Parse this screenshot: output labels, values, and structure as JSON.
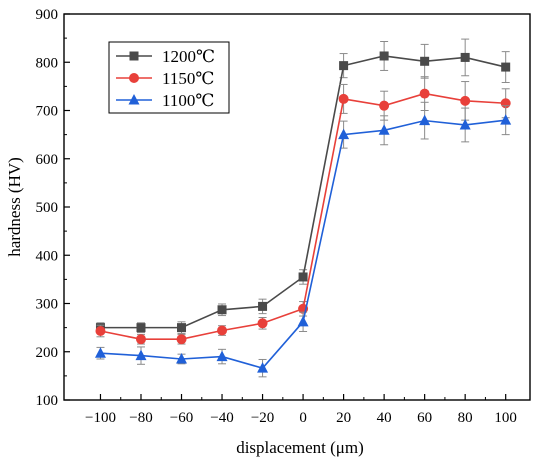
{
  "chart_data": {
    "type": "line",
    "xlabel": "displacement (μm)",
    "ylabel": "hardness (HV)",
    "x": [
      -100,
      -80,
      -60,
      -40,
      -20,
      0,
      20,
      40,
      60,
      80,
      100
    ],
    "xticks": [
      "−100",
      "−80",
      "−60",
      "−40",
      "−20",
      "0",
      "20",
      "40",
      "60",
      "80",
      "100"
    ],
    "xlim": [
      -118,
      112
    ],
    "yticks": [
      "100",
      "200",
      "300",
      "400",
      "500",
      "600",
      "700",
      "800",
      "900"
    ],
    "ylim": [
      100,
      900
    ],
    "grid": false,
    "legend_position": "top-left",
    "series": [
      {
        "name": "1200℃",
        "color": "#4a4a4a",
        "marker": "square",
        "values": [
          250,
          250,
          250,
          287,
          294,
          355,
          793,
          813,
          802,
          810,
          790
        ],
        "errors": [
          10,
          10,
          12,
          12,
          15,
          15,
          25,
          30,
          35,
          38,
          32
        ]
      },
      {
        "name": "1150℃",
        "color": "#e8403a",
        "marker": "circle",
        "values": [
          243,
          226,
          226,
          244,
          259,
          289,
          724,
          710,
          735,
          720,
          715
        ],
        "errors": [
          12,
          10,
          10,
          10,
          12,
          15,
          30,
          30,
          35,
          40,
          30
        ]
      },
      {
        "name": "1100℃",
        "color": "#2060d8",
        "marker": "triangle",
        "values": [
          197,
          192,
          185,
          190,
          166,
          262,
          650,
          659,
          679,
          670,
          680
        ],
        "errors": [
          12,
          18,
          10,
          15,
          18,
          20,
          28,
          30,
          38,
          35,
          30
        ]
      }
    ]
  }
}
